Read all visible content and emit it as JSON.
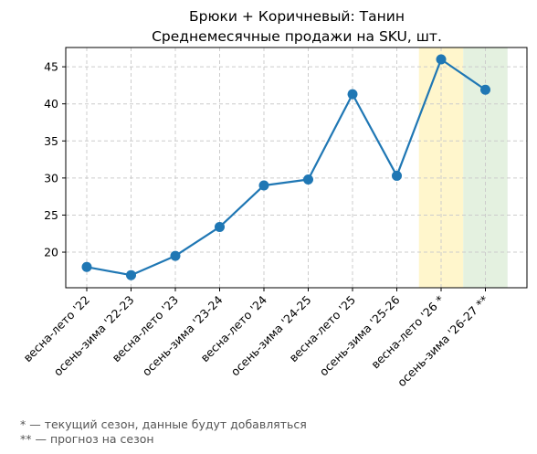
{
  "chart_data": {
    "type": "line",
    "title": "Брюки + Коричневый: Танин",
    "subtitle": "Среднемесячные продажи на SKU, шт.",
    "categories": [
      "весна-лето '22",
      "осень-зима '22-23",
      "весна-лето '23",
      "осень-зима '23-24",
      "весна-лето '24",
      "осень-зима '24-25",
      "весна-лето '25",
      "осень-зима '25-26",
      "весна-лето '26 *",
      "осень-зима '26-27 **"
    ],
    "series": [
      {
        "values": [
          18.0,
          16.9,
          19.5,
          23.4,
          29.0,
          29.8,
          41.3,
          30.3,
          46.0,
          41.9
        ]
      }
    ],
    "ylim": [
      15.2,
      47.6
    ],
    "yticks": [
      20,
      25,
      30,
      35,
      40,
      45
    ],
    "grid": true,
    "highlights": [
      {
        "category_index": 8,
        "meaning": "current season",
        "color": "#fff6cc"
      },
      {
        "category_index": 9,
        "meaning": "forecast",
        "color": "#e4f1e0"
      }
    ],
    "line_color": "#1f77b4"
  },
  "footnotes": [
    "* — текущий сезон, данные будут добавляться",
    "** — прогноз на сезон"
  ]
}
